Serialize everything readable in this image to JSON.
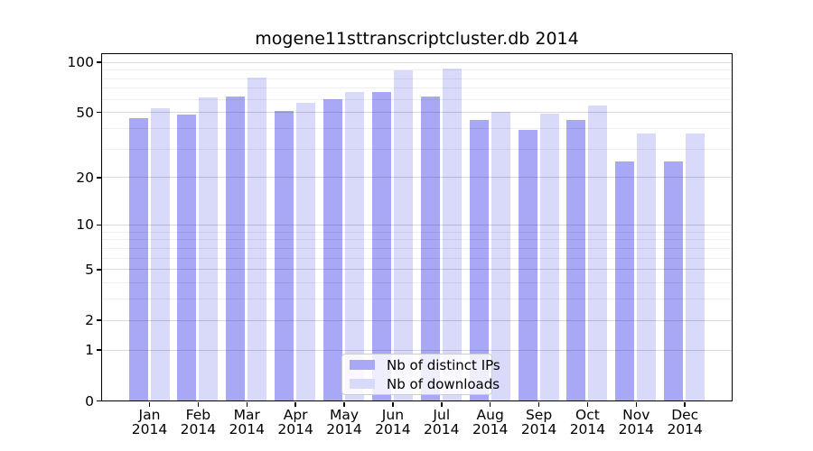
{
  "title": "mogene11sttranscriptcluster.db 2014",
  "chart_data": {
    "type": "bar",
    "title": "mogene11sttranscriptcluster.db 2014",
    "y_scale": "log10(1+v)",
    "grid": "on",
    "legend_position": "lower center",
    "categories": [
      "Jan 2014",
      "Feb 2014",
      "Mar 2014",
      "Apr 2014",
      "May 2014",
      "Jun 2014",
      "Jul 2014",
      "Aug 2014",
      "Sep 2014",
      "Oct 2014",
      "Nov 2014",
      "Dec 2014"
    ],
    "x_tick_months": [
      "Jan",
      "Feb",
      "Mar",
      "Apr",
      "May",
      "Jun",
      "Jul",
      "Aug",
      "Sep",
      "Oct",
      "Nov",
      "Dec"
    ],
    "x_tick_year": "2014",
    "series": [
      {
        "name": "Nb of distinct IPs",
        "color": "#a8a8f6",
        "values": [
          46,
          48,
          62,
          51,
          60,
          66,
          62,
          45,
          39,
          45,
          25,
          25
        ]
      },
      {
        "name": "Nb of downloads",
        "color": "#d9d9fa",
        "values": [
          53,
          61,
          81,
          57,
          66,
          89,
          91,
          50,
          49,
          55,
          37,
          37
        ]
      }
    ],
    "y_major_ticks": [
      100,
      50,
      20,
      10,
      5,
      2,
      1,
      0
    ],
    "y_minor_gridlines": [
      3,
      4,
      6,
      7,
      8,
      9,
      30,
      40,
      60,
      70,
      80,
      90
    ],
    "ylim": [
      0,
      111
    ]
  },
  "colors": {
    "distinct_ips_bar": "#a8a8f6",
    "downloads_bar": "#d9d9fa",
    "axis": "#000000",
    "major_grid_on_white": "#d9d9d9",
    "minor_grid_on_white": "#f0f0f0",
    "legend_border": "#cccccc",
    "background": "#ffffff"
  }
}
